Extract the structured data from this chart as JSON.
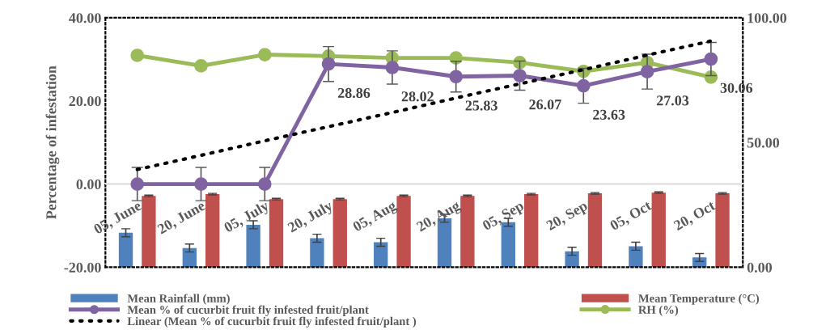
{
  "chart_data": {
    "type": "bar",
    "categories": [
      "05, June",
      "20, June",
      "05, July",
      "20, July",
      "05, Aug",
      "20, Aug",
      "05, Sep",
      "20, Sep",
      "05, Oct",
      "20, Oct"
    ],
    "series": [
      {
        "name": "Mean Rainfall (mm)",
        "type": "bar",
        "axis": "y2",
        "color": "#4f81bd",
        "values": [
          13.8,
          7.7,
          17.0,
          11.6,
          10.0,
          19.6,
          18.0,
          6.4,
          8.4,
          3.9
        ],
        "errors": [
          1.6,
          1.6,
          1.6,
          1.6,
          1.6,
          1.6,
          1.6,
          1.6,
          1.6,
          1.6
        ]
      },
      {
        "name": "Mean Temperature (°C)",
        "type": "bar",
        "axis": "y2",
        "color": "#c0504d",
        "values": [
          28.6,
          29.3,
          27.3,
          27.3,
          28.6,
          28.6,
          29.3,
          29.6,
          29.9,
          29.6
        ],
        "errors": [
          0.3,
          0.3,
          0.3,
          0.3,
          0.3,
          0.3,
          0.3,
          0.3,
          0.3,
          0.3
        ]
      },
      {
        "name": "Mean % of cucurbit fruit fly infested fruit/plant",
        "type": "line",
        "color": "#8064a2",
        "marker": "circle",
        "values": [
          0,
          0,
          0,
          28.86,
          28.02,
          25.83,
          26.07,
          23.63,
          27.03,
          30.06
        ],
        "errors": [
          4.0,
          4.0,
          4.0,
          4.2,
          4.0,
          3.7,
          3.5,
          4.2,
          4.2,
          4.0
        ],
        "value_labels": [
          null,
          null,
          null,
          "28.86",
          "28.02",
          "25.83",
          "26.07",
          "23.63",
          "27.03",
          "30.06"
        ]
      },
      {
        "name": "RH (%)",
        "type": "line",
        "axis": "y2",
        "color": "#9bbb59",
        "marker": "circle",
        "values": [
          84.9,
          80.7,
          85.2,
          84.6,
          83.9,
          83.9,
          82.0,
          78.5,
          82.0,
          76.2
        ]
      },
      {
        "name": "Linear (Mean % of cucurbit fruit fly infested fruit/plant )",
        "type": "line",
        "color": "#000000",
        "line_style": "dotted",
        "values": [
          3.5,
          6.9,
          10.4,
          13.8,
          17.2,
          20.7,
          24.1,
          27.5,
          31.0,
          34.4
        ]
      }
    ],
    "ylabel": "Percentage of infestation",
    "ylim": [
      -20,
      40
    ],
    "yticks": [
      {
        "value": -20,
        "label": "-20.00"
      },
      {
        "value": 0,
        "label": "0.00"
      },
      {
        "value": 20,
        "label": "20.00"
      },
      {
        "value": 40,
        "label": "40.00"
      }
    ],
    "y2lim": [
      0,
      100
    ],
    "y2ticks": [
      {
        "value": 0,
        "label": "0.00"
      },
      {
        "value": 50,
        "label": "50.00"
      },
      {
        "value": 100,
        "label": "100.00"
      }
    ],
    "ref_lines": [
      {
        "axis": "y",
        "value": 0,
        "color": "#d9d9d9"
      }
    ],
    "legend": "bottom"
  }
}
